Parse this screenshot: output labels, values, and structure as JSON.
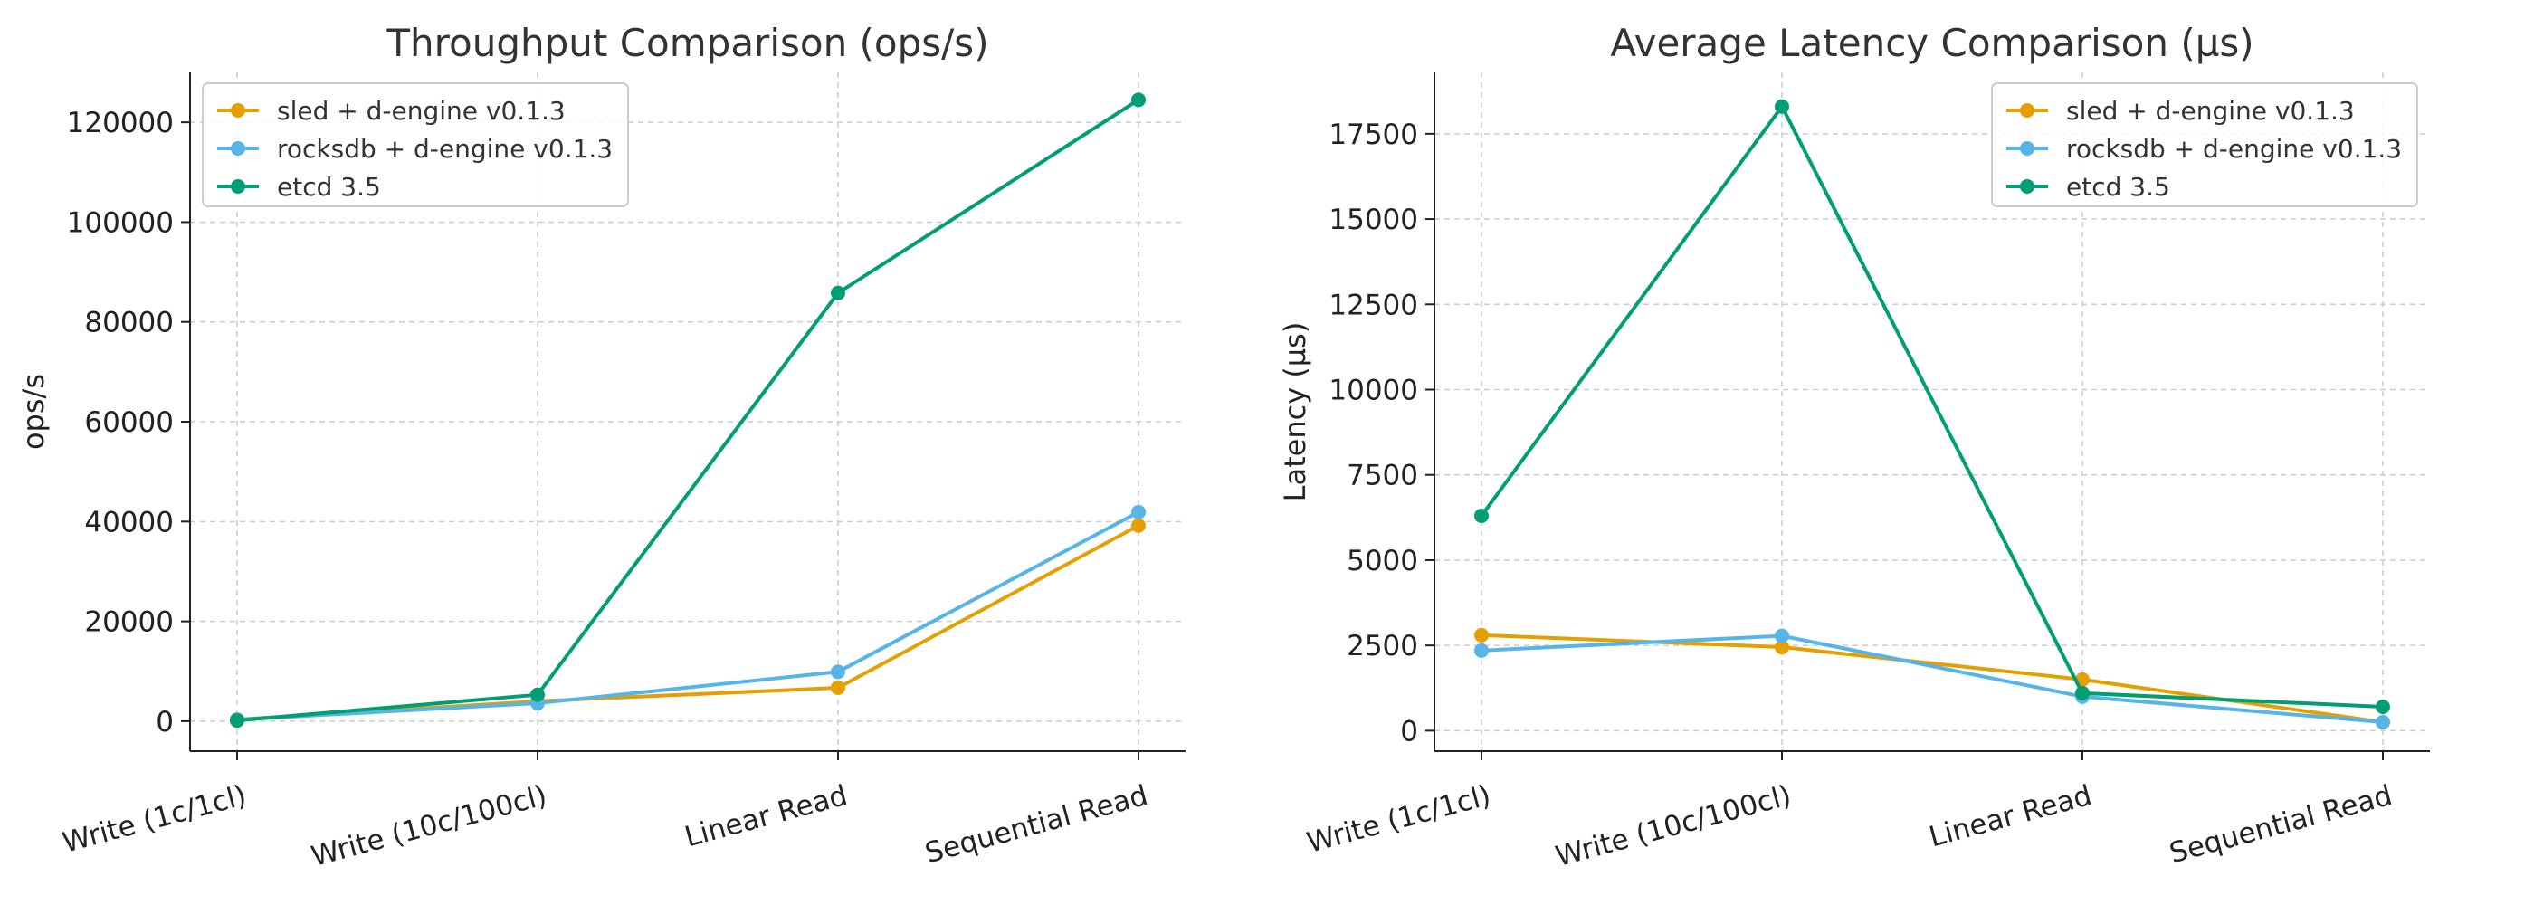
{
  "chart_data": [
    {
      "type": "line",
      "title": "Throughput Comparison (ops/s)",
      "xlabel": "",
      "ylabel": "ops/s",
      "categories": [
        "Write (1c/1cl)",
        "Write (10c/100cl)",
        "Linear Read",
        "Sequential Read"
      ],
      "ylim": [
        -6000,
        130000
      ],
      "yticks": [
        0,
        20000,
        40000,
        60000,
        80000,
        100000,
        120000
      ],
      "grid": true,
      "legend_position": "top-left",
      "series": [
        {
          "name": "sled + d-engine v0.1.3",
          "color": "#E69F00",
          "values": [
            350,
            4000,
            6700,
            39200
          ]
        },
        {
          "name": "rocksdb + d-engine v0.1.3",
          "color": "#56B4E9",
          "values": [
            300,
            3600,
            9900,
            41900
          ]
        },
        {
          "name": "etcd 3.5",
          "color": "#009E73",
          "values": [
            150,
            5300,
            85800,
            124500
          ]
        }
      ]
    },
    {
      "type": "line",
      "title": "Average Latency Comparison (µs)",
      "xlabel": "",
      "ylabel": "Latency (µs)",
      "categories": [
        "Write (1c/1cl)",
        "Write (10c/100cl)",
        "Linear Read",
        "Sequential Read"
      ],
      "ylim": [
        -600,
        19300
      ],
      "yticks": [
        0,
        2500,
        5000,
        7500,
        10000,
        12500,
        15000,
        17500
      ],
      "grid": true,
      "legend_position": "top-right",
      "series": [
        {
          "name": "sled + d-engine v0.1.3",
          "color": "#E69F00",
          "values": [
            2800,
            2450,
            1500,
            250
          ]
        },
        {
          "name": "rocksdb + d-engine v0.1.3",
          "color": "#56B4E9",
          "values": [
            2350,
            2780,
            1000,
            250
          ]
        },
        {
          "name": "etcd 3.5",
          "color": "#009E73",
          "values": [
            6300,
            18300,
            1100,
            700
          ]
        }
      ]
    }
  ]
}
